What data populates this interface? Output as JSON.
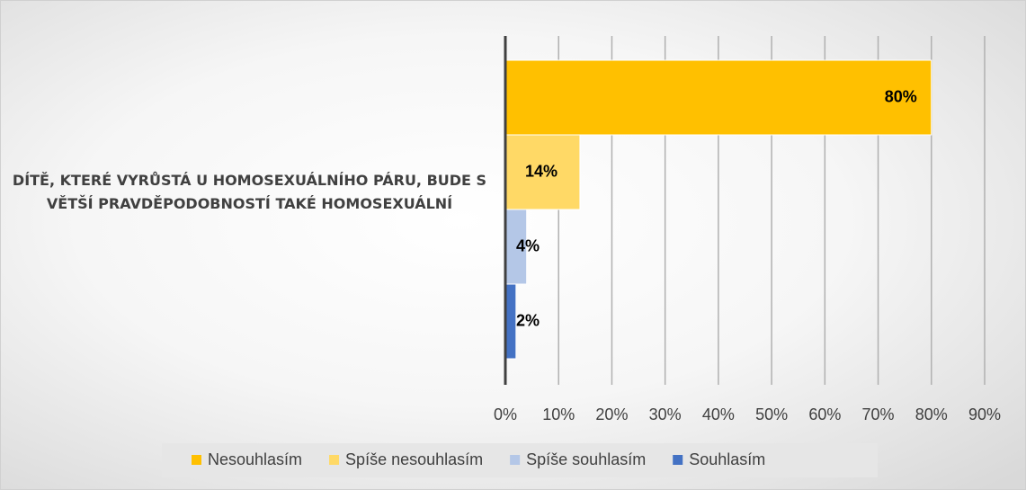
{
  "chart_data": {
    "type": "bar",
    "orientation": "horizontal",
    "categories": [
      "DÍTĚ, KTERÉ VYRŮSTÁ U HOMOSEXUÁLNÍHO PÁRU, BUDE S VĚTŠÍ PRAVDĚPODOBNOSTÍ TAKÉ HOMOSEXUÁLNÍ"
    ],
    "series": [
      {
        "name": "Nesouhlasím",
        "color": "#ffc000",
        "values": [
          80
        ],
        "value_labels": [
          "80%"
        ]
      },
      {
        "name": "Spíše nesouhlasím",
        "color": "#ffd966",
        "values": [
          14
        ],
        "value_labels": [
          "14%"
        ]
      },
      {
        "name": "Spíše souhlasím",
        "color": "#b4c7e7",
        "values": [
          4
        ],
        "value_labels": [
          "4%"
        ]
      },
      {
        "name": "Souhlasím",
        "color": "#4472c4",
        "values": [
          2
        ],
        "value_labels": [
          "2%"
        ]
      }
    ],
    "xlim": [
      0,
      90
    ],
    "xticks": [
      {
        "value": 0,
        "label": "0%"
      },
      {
        "value": 10,
        "label": "10%"
      },
      {
        "value": 20,
        "label": "20%"
      },
      {
        "value": 30,
        "label": "30%"
      },
      {
        "value": 40,
        "label": "40%"
      },
      {
        "value": 50,
        "label": "50%"
      },
      {
        "value": 60,
        "label": "60%"
      },
      {
        "value": 70,
        "label": "70%"
      },
      {
        "value": 80,
        "label": "80%"
      },
      {
        "value": 90,
        "label": "90%"
      }
    ],
    "grid": true,
    "legend": "bottom"
  }
}
